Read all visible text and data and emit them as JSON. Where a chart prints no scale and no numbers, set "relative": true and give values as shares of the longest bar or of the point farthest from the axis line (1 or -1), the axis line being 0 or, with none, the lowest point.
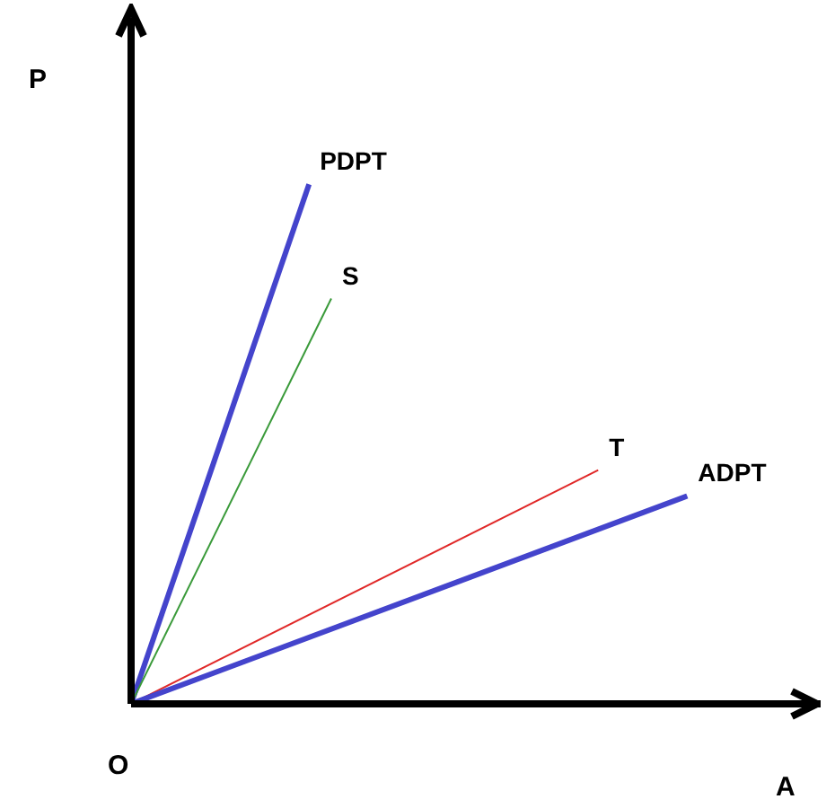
{
  "chart_data": {
    "type": "line",
    "relative": true,
    "xlabel": "A",
    "ylabel": "P",
    "annotations": [
      "O"
    ],
    "legend": false,
    "grid": false,
    "marker": "none",
    "categories": [
      null,
      null,
      null,
      null,
      null,
      null,
      null,
      null,
      null,
      null,
      null,
      null,
      null,
      null,
      null,
      null,
      null,
      null,
      null,
      null,
      null,
      null,
      null,
      null,
      null,
      null,
      null,
      null,
      null,
      null,
      null,
      null
    ],
    "series": [
      {
        "name": "PDPT",
        "color": "#4444cc",
        "values": [
          0,
          null,
          null,
          null,
          null,
          null,
          null,
          null,
          1,
          null,
          null,
          null,
          null,
          null,
          null,
          null,
          null,
          null,
          null,
          null,
          null,
          null,
          null,
          null,
          null,
          null,
          null,
          null,
          null,
          null,
          null,
          null
        ]
      },
      {
        "name": "S",
        "color": "#3a9a3a",
        "values": [
          0,
          null,
          null,
          null,
          null,
          null,
          null,
          null,
          null,
          0.78,
          null,
          null,
          null,
          null,
          null,
          null,
          null,
          null,
          null,
          null,
          null,
          null,
          null,
          null,
          null,
          null,
          null,
          null,
          null,
          null,
          null,
          null
        ]
      },
      {
        "name": "T",
        "color": "#e02828",
        "values": [
          0,
          null,
          null,
          null,
          null,
          null,
          null,
          null,
          null,
          null,
          null,
          null,
          null,
          null,
          null,
          null,
          null,
          null,
          null,
          null,
          null,
          0.45,
          null,
          null,
          null,
          null,
          null,
          null,
          null,
          null,
          null,
          null
        ]
      },
      {
        "name": "ADPT",
        "color": "#4444cc",
        "values": [
          0,
          null,
          null,
          null,
          null,
          null,
          null,
          null,
          null,
          null,
          null,
          null,
          null,
          null,
          null,
          null,
          null,
          null,
          null,
          null,
          null,
          null,
          null,
          null,
          null,
          0.4,
          null,
          null,
          null,
          null,
          null,
          null
        ]
      }
    ]
  }
}
